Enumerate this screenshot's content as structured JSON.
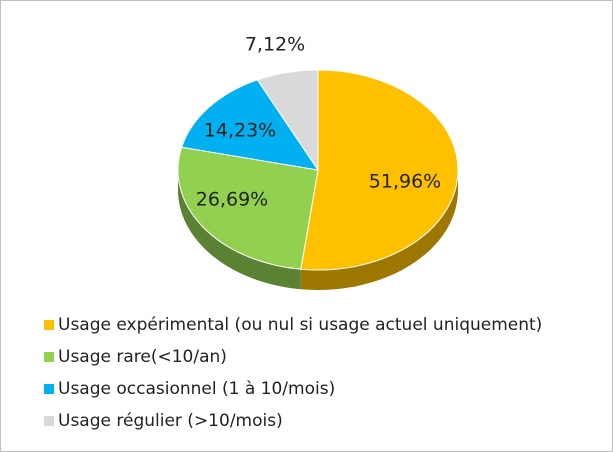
{
  "chart_data": {
    "type": "pie",
    "categories": [
      "Usage expérimental (ou nul si usage actuel uniquement)",
      "Usage rare(<10/an)",
      "Usage occasionnel (1 à 10/mois)",
      "Usage régulier (>10/mois)"
    ],
    "values": [
      51.96,
      26.69,
      14.23,
      7.12
    ],
    "value_labels": [
      "51,96%",
      "26,69%",
      "14,23%",
      "7,12%"
    ],
    "colors": [
      "#FFC000",
      "#92D050",
      "#00B0F0",
      "#D9D9D9"
    ]
  }
}
